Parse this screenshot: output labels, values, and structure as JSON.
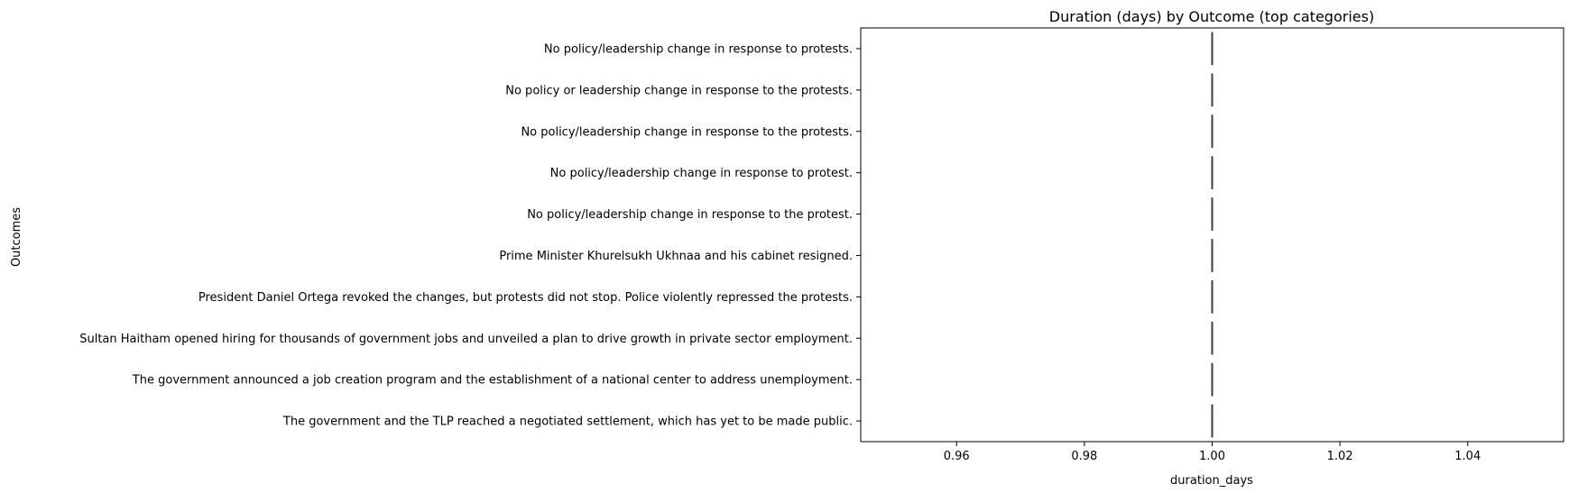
{
  "chart_data": {
    "type": "box",
    "orientation": "horizontal",
    "title": "Duration (days) by Outcome (top categories)",
    "xlabel": "duration_days",
    "ylabel": "Outcomes",
    "xlim": [
      0.945,
      1.055
    ],
    "xticks": [
      0.96,
      0.98,
      1.0,
      1.02,
      1.04
    ],
    "xtick_labels": [
      "0.96",
      "0.98",
      "1.00",
      "1.02",
      "1.04"
    ],
    "grid": false,
    "categories": [
      "No policy/leadership change in response to protests.",
      "No policy or leadership change in response to the protests.",
      "No policy/leadership change in response to the protests.",
      "No policy/leadership change in response to protest.",
      "No policy/leadership change in response to the protest.",
      "Prime Minister Khurelsukh Ukhnaa and his cabinet resigned.",
      "President Daniel Ortega revoked the changes, but protests did not stop. Police violently repressed the protests.",
      "Sultan Haitham opened hiring for thousands of government jobs and unveiled a plan to drive growth in private sector employment.",
      "The government announced a job creation program and the establishment of a national center to address unemployment.",
      "The government and the TLP reached a negotiated settlement, which has yet to be made public."
    ],
    "values": [
      1,
      1,
      1,
      1,
      1,
      1,
      1,
      1,
      1,
      1
    ],
    "box_color": "#3d3d3d"
  }
}
